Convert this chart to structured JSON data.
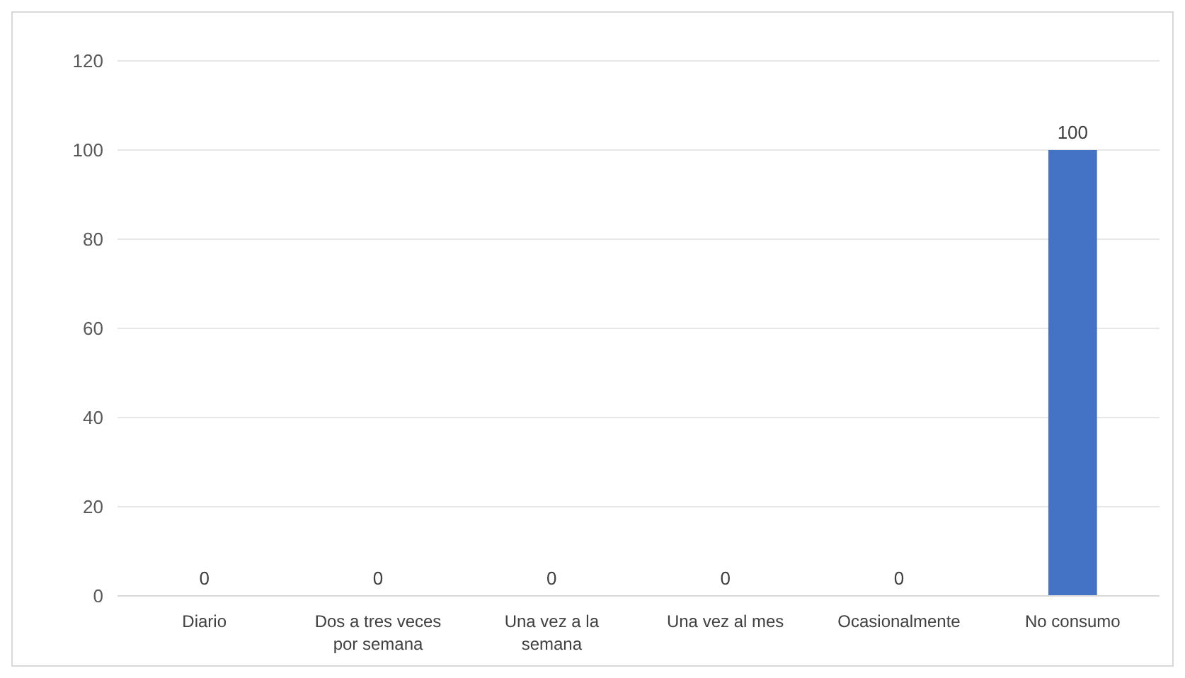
{
  "chart_data": {
    "type": "bar",
    "categories": [
      "Diario",
      "Dos a tres veces por semana",
      "Una vez a la semana",
      "Una vez al mes",
      "Ocasionalmente",
      "No consumo"
    ],
    "values": [
      0,
      0,
      0,
      0,
      0,
      100
    ],
    "color": "#4472c4",
    "ylim": [
      0,
      120
    ],
    "yticks": [
      0,
      20,
      40,
      60,
      80,
      100,
      120
    ],
    "grid": "y",
    "data_labels": true
  }
}
